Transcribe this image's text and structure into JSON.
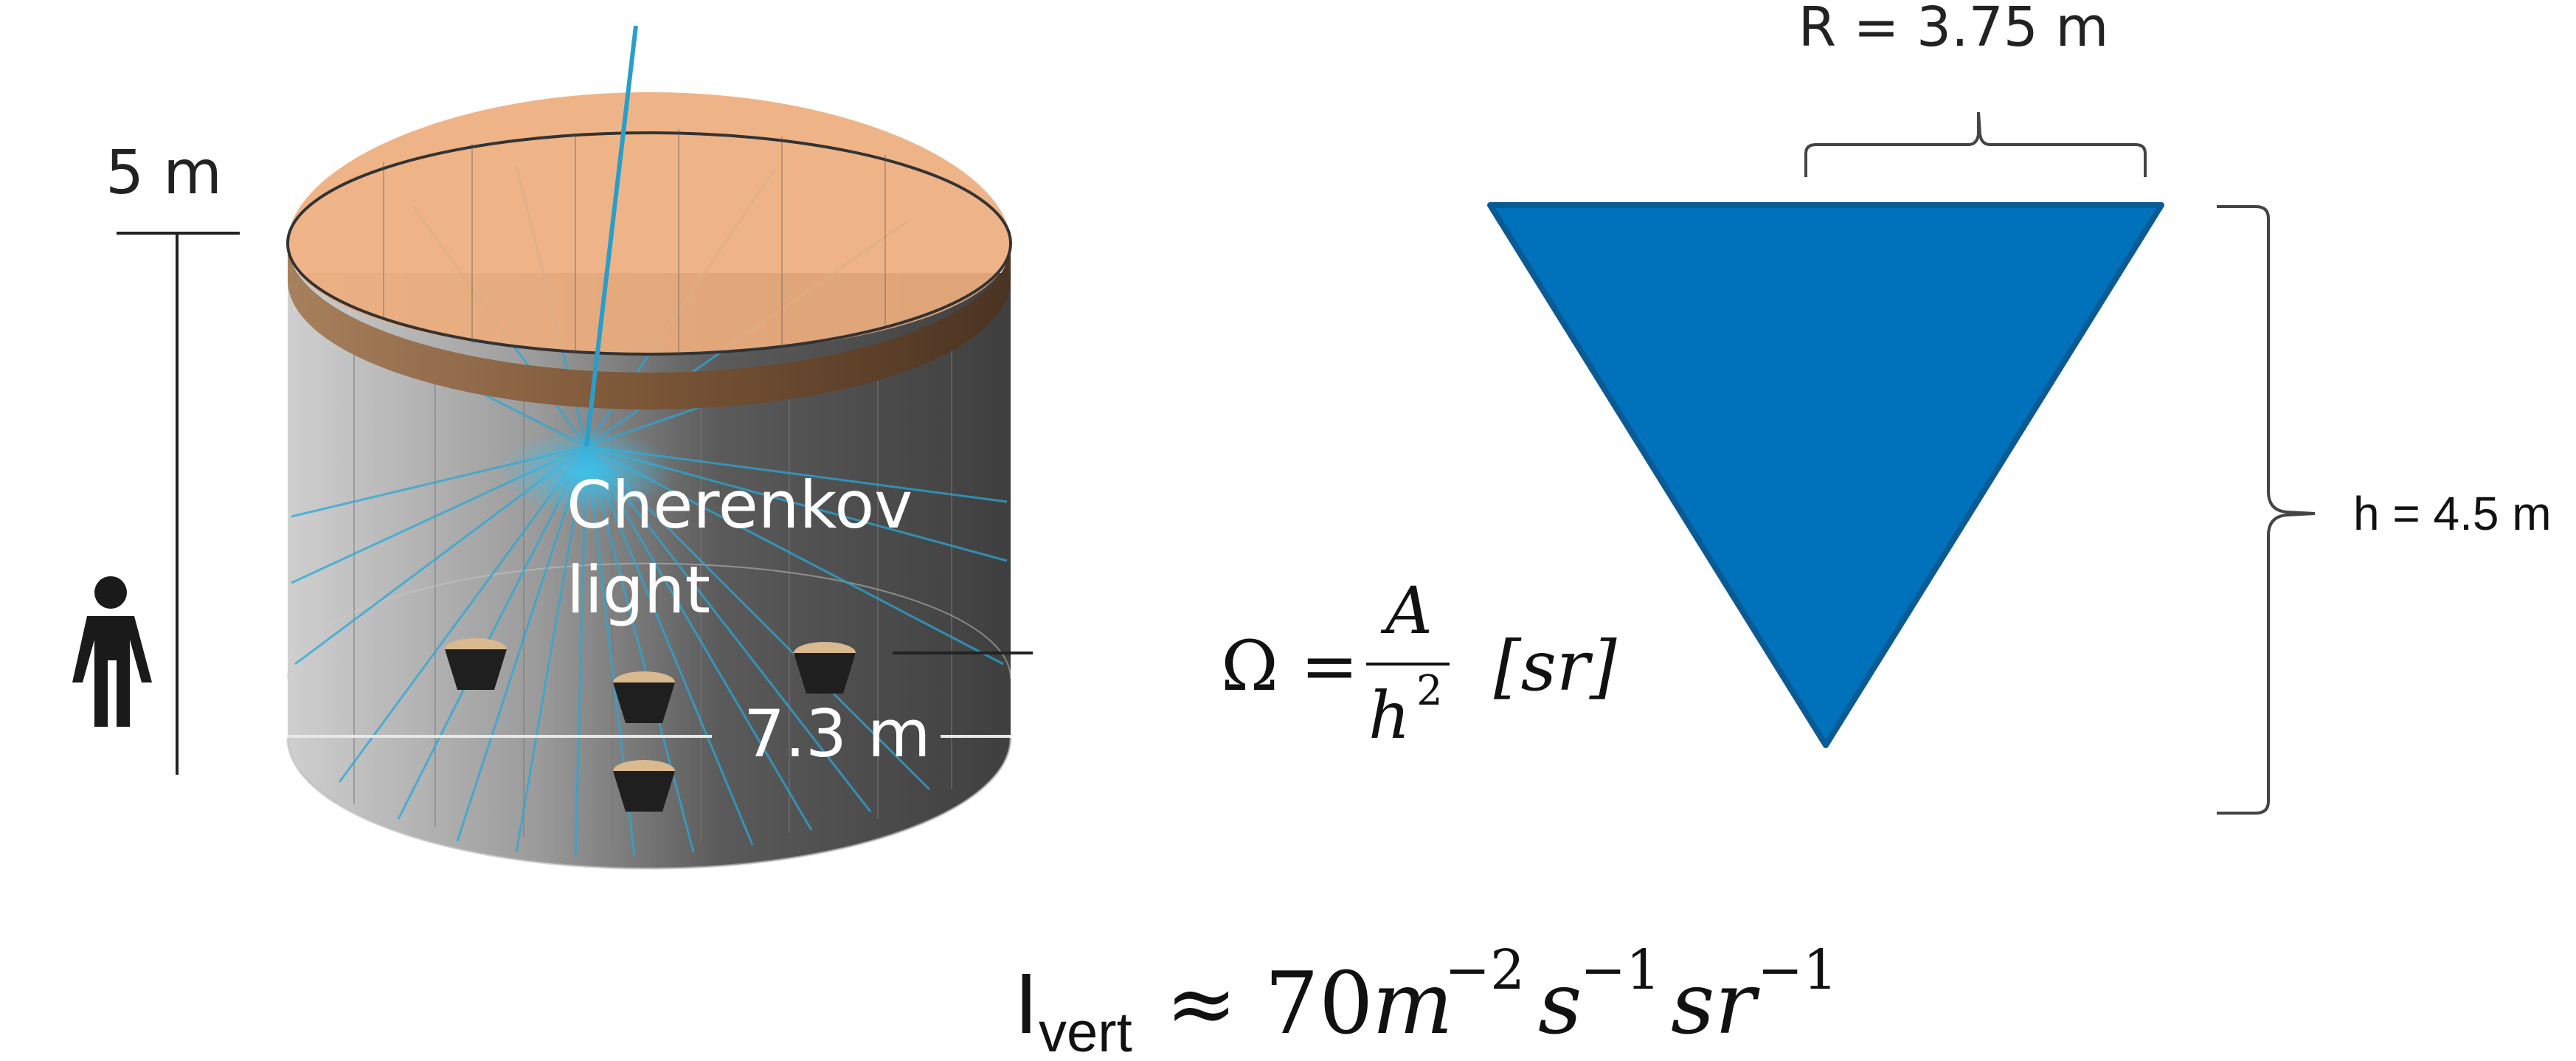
{
  "tank": {
    "height_label": "5 m",
    "light_label_line1": "Cherenkov",
    "light_label_line2": "light",
    "diameter_label": "7.3 m"
  },
  "cone": {
    "radius_label": "R = 3.75 m",
    "height_label": "h = 4.5 m"
  },
  "solid_angle_formula": {
    "lhs": "Ω =",
    "numerator": "A",
    "denominator_base": "h",
    "denominator_exp": "2",
    "unit": "[sr]"
  },
  "intensity_formula": {
    "symbol": "I",
    "subscript": "vert",
    "approx": "≈ 70",
    "terms": [
      {
        "base": "m",
        "exp": "−2"
      },
      {
        "base": "s",
        "exp": "−1"
      },
      {
        "base": "sr",
        "exp": "−1"
      }
    ]
  },
  "colors": {
    "cone_fill": "#0072BC",
    "water_orange": "#EDAE7E",
    "light_rays": "#29A8D6",
    "tank_dark": "#4A4A4A"
  }
}
